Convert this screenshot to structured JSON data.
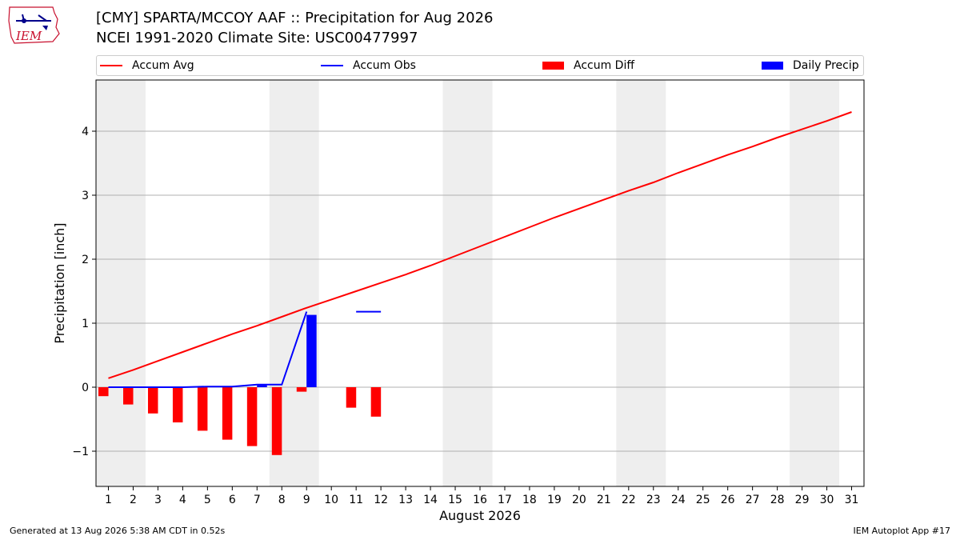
{
  "header": {
    "title_line1": "[CMY] SPARTA/MCCOY AAF :: Precipitation for Aug 2026",
    "title_line2": "NCEI 1991-2020 Climate Site: USC00477997"
  },
  "logo": {
    "text": "IEM",
    "icon": "iem-iowa-logo-icon"
  },
  "legend": {
    "items": [
      {
        "label": "Accum Avg",
        "kind": "line",
        "color": "#ff0000"
      },
      {
        "label": "Accum Obs",
        "kind": "line",
        "color": "#0000ff"
      },
      {
        "label": "Accum Diff",
        "kind": "bar",
        "color": "#ff0000"
      },
      {
        "label": "Daily Precip",
        "kind": "bar",
        "color": "#0000ff"
      }
    ]
  },
  "footer": {
    "left": "Generated at 13 Aug 2026 5:38 AM CDT in 0.52s",
    "right": "IEM Autoplot App #17"
  },
  "chart_data": {
    "type": "bar",
    "xlabel": "August 2026",
    "ylabel": "Precipitation [inch]",
    "xlim": [
      0.5,
      31.5
    ],
    "ylim": [
      -1.55,
      4.8
    ],
    "x_ticks": [
      1,
      2,
      3,
      4,
      5,
      6,
      7,
      8,
      9,
      10,
      11,
      12,
      13,
      14,
      15,
      16,
      17,
      18,
      19,
      20,
      21,
      22,
      23,
      24,
      25,
      26,
      27,
      28,
      29,
      30,
      31
    ],
    "y_ticks": [
      -1,
      0,
      1,
      2,
      3,
      4
    ],
    "y_tick_labels": [
      "−1",
      "0",
      "1",
      "2",
      "3",
      "4"
    ],
    "grid": true,
    "legend_position": "top",
    "weekend_shading": [
      [
        0.5,
        2.5
      ],
      [
        7.5,
        9.5
      ],
      [
        14.5,
        16.5
      ],
      [
        21.5,
        23.5
      ],
      [
        28.5,
        30.5
      ]
    ],
    "shading_color": "#eeeeee",
    "series": [
      {
        "name": "Accum Avg",
        "type": "line",
        "color": "#ff0000",
        "x": [
          1,
          2,
          3,
          4,
          5,
          6,
          7,
          8,
          9,
          10,
          11,
          12,
          13,
          14,
          15,
          16,
          17,
          18,
          19,
          20,
          21,
          22,
          23,
          24,
          25,
          26,
          27,
          28,
          29,
          30,
          31
        ],
        "values": [
          0.14,
          0.27,
          0.41,
          0.55,
          0.69,
          0.83,
          0.96,
          1.1,
          1.24,
          1.37,
          1.5,
          1.63,
          1.76,
          1.9,
          2.05,
          2.2,
          2.35,
          2.5,
          2.65,
          2.79,
          2.93,
          3.07,
          3.2,
          3.35,
          3.49,
          3.63,
          3.76,
          3.9,
          4.03,
          4.16,
          4.3
        ]
      },
      {
        "name": "Accum Obs",
        "type": "line",
        "color": "#0000ff",
        "x": [
          1,
          2,
          3,
          4,
          5,
          6,
          7,
          8,
          9
        ],
        "values": [
          0.0,
          0.0,
          0.0,
          0.0,
          0.01,
          0.01,
          0.04,
          0.04,
          1.18
        ]
      },
      {
        "name": "Accum Obs",
        "type": "line",
        "color": "#0000ff",
        "x": [
          11,
          12
        ],
        "values": [
          1.18,
          1.18
        ]
      },
      {
        "name": "Accum Diff",
        "type": "bar",
        "color": "#ff0000",
        "offset": -0.2,
        "x": [
          1,
          2,
          3,
          4,
          5,
          6,
          7,
          8,
          9,
          11,
          12
        ],
        "values": [
          -0.14,
          -0.27,
          -0.41,
          -0.55,
          -0.68,
          -0.82,
          -0.92,
          -1.06,
          -0.07,
          -0.32,
          -0.46
        ]
      },
      {
        "name": "Daily Precip",
        "type": "bar",
        "color": "#0000ff",
        "offset": 0.2,
        "x": [
          7,
          9
        ],
        "values": [
          0.03,
          1.13
        ]
      }
    ]
  }
}
